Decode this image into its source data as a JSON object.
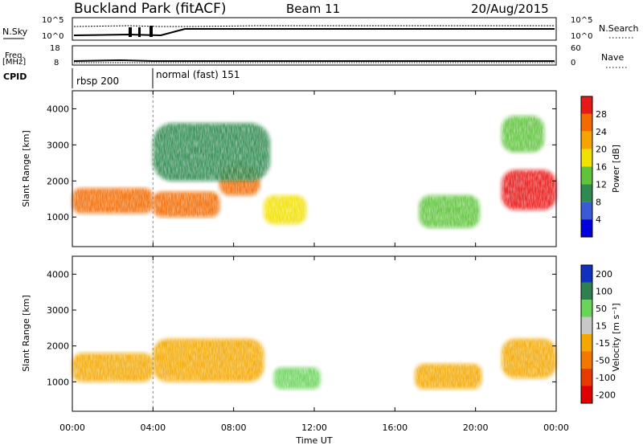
{
  "header": {
    "station": "Buckland Park (fitACF)",
    "beam": "Beam 11",
    "date": "20/Aug/2015"
  },
  "status_panel": {
    "left_label": "N.Sky",
    "right_label": "N.Search",
    "left_ticks": [
      "10^5",
      "10^0"
    ],
    "right_ticks": [
      "10^5",
      "10^0"
    ]
  },
  "freq_panel": {
    "left_label": "Freq.",
    "left_unit": "[MHz]",
    "right_label": "Nave",
    "left_ticks": [
      "18",
      "8"
    ],
    "right_ticks": [
      "60",
      "0"
    ]
  },
  "cpid": {
    "label": "CPID",
    "modes": [
      {
        "name": "rbsp 200",
        "start_hour": 0,
        "end_hour": 4
      },
      {
        "name": "normal (fast) 151",
        "start_hour": 4,
        "end_hour": 24
      }
    ]
  },
  "chart_data": [
    {
      "type": "heatmap",
      "title": "Power",
      "ylabel": "Slant Range [km]",
      "ylim": [
        180,
        4500
      ],
      "yticks": [
        "1000",
        "2000",
        "3000",
        "4000"
      ],
      "colorbar": {
        "label": "Power [dB]",
        "min": 0,
        "max": 32,
        "ticks": [
          "4",
          "8",
          "12",
          "16",
          "20",
          "24",
          "28"
        ],
        "colors": [
          "#0000dd",
          "#3a5bd6",
          "#2f8a4f",
          "#5fc43a",
          "#f2e000",
          "#f7a400",
          "#f36a00",
          "#e81818"
        ]
      },
      "regions": [
        {
          "t": [
            0,
            4
          ],
          "range": [
            1100,
            1800
          ],
          "power": 26
        },
        {
          "t": [
            4,
            7.3
          ],
          "range": [
            1000,
            1700
          ],
          "power": 26
        },
        {
          "t": [
            7.3,
            9.3
          ],
          "range": [
            1600,
            2400
          ],
          "power": 24
        },
        {
          "t": [
            9.5,
            11.6
          ],
          "range": [
            800,
            1600
          ],
          "power": 16
        },
        {
          "t": [
            17.2,
            20.2
          ],
          "range": [
            700,
            1600
          ],
          "power": 12
        },
        {
          "t": [
            21.3,
            24
          ],
          "range": [
            1200,
            2300
          ],
          "power": 28
        },
        {
          "t": [
            21.3,
            23.4
          ],
          "range": [
            2800,
            3800
          ],
          "power": 12
        },
        {
          "t": [
            4,
            9.8
          ],
          "range": [
            2000,
            3600
          ],
          "power": 10
        }
      ]
    },
    {
      "type": "heatmap",
      "title": "Velocity",
      "ylabel": "Slant Range [km]",
      "xlabel": "Time UT",
      "xlim": [
        0,
        24
      ],
      "xticks": [
        "00:00",
        "04:00",
        "08:00",
        "12:00",
        "16:00",
        "20:00",
        "00:00"
      ],
      "ylim": [
        180,
        4500
      ],
      "yticks": [
        "1000",
        "2000",
        "3000",
        "4000"
      ],
      "colorbar": {
        "label": "Velocity [m s⁻¹]",
        "ticks": [
          "200",
          "100",
          "50",
          "15",
          "-15",
          "-50",
          "-100",
          "-200"
        ],
        "colors": [
          "#1030c0",
          "#2f7f4f",
          "#6ad35a",
          "#c8c8c8",
          "#f3a800",
          "#f37800",
          "#e83a00",
          "#e00000"
        ]
      },
      "regions": [
        {
          "t": [
            0,
            4
          ],
          "range": [
            1000,
            1800
          ],
          "velocity": 0
        },
        {
          "t": [
            4,
            9.5
          ],
          "range": [
            1000,
            2200
          ],
          "velocity": 0
        },
        {
          "t": [
            10,
            12.3
          ],
          "range": [
            800,
            1400
          ],
          "velocity": 60
        },
        {
          "t": [
            17,
            20.3
          ],
          "range": [
            800,
            1500
          ],
          "velocity": 0
        },
        {
          "t": [
            21.3,
            24
          ],
          "range": [
            1100,
            2200
          ],
          "velocity": 0
        }
      ]
    }
  ]
}
